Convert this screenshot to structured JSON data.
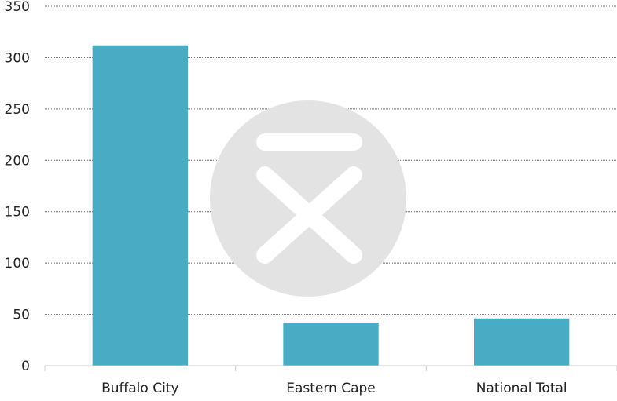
{
  "chart_data": {
    "type": "bar",
    "title": "",
    "xlabel": "",
    "ylabel": "",
    "categories": [
      "Buffalo City",
      "Eastern Cape",
      "National Total"
    ],
    "series": [
      {
        "name": "",
        "values": [
          312,
          42,
          46
        ]
      }
    ],
    "ylim": [
      0,
      350
    ],
    "yticks": [
      0,
      50,
      100,
      150,
      200,
      250,
      300,
      350
    ],
    "grid": "horizontal dotted",
    "legend": "none",
    "colors": {
      "bar": "#4aabc4",
      "grid": "#666666",
      "axis": "#cccccc",
      "watermark": "#e3e3e3"
    }
  }
}
